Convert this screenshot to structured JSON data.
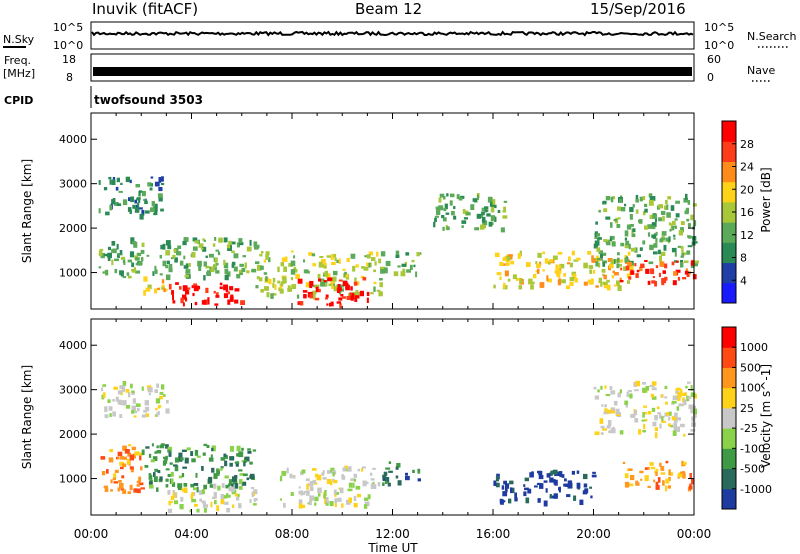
{
  "header": {
    "station": "Inuvik (fitACF)",
    "beam": "Beam 12",
    "date": "15/Sep/2016"
  },
  "top_strips": {
    "nsky": {
      "label": "N.Sky",
      "ticks": [
        "10^5",
        "10^0"
      ]
    },
    "nsearch": {
      "label": "N.Search",
      "ticks": [
        "10^5",
        "10^0"
      ]
    },
    "freq": {
      "label": "Freq.",
      "unit": "[MHz]",
      "ticks": [
        "18",
        "8"
      ]
    },
    "nave": {
      "label": "Nave",
      "ticks": [
        "60",
        "0"
      ]
    },
    "cpid": {
      "label": "CPID",
      "value": "twofsound 3503"
    }
  },
  "colors": {
    "power": [
      "#1a1aff",
      "#1f3fa6",
      "#2a8a55",
      "#5aaa5a",
      "#a8c83a",
      "#ffd21a",
      "#ff8c1a",
      "#ff3c1a",
      "#ff0000"
    ],
    "velocity": [
      "#1e3ca0",
      "#2a6a5a",
      "#3f9a46",
      "#8ad24a",
      "#c8c8c8",
      "#ffd21a",
      "#ff961e",
      "#ff4a14",
      "#ff0000"
    ],
    "groundscatter": "#c8c8c8"
  },
  "chart_data": [
    {
      "type": "heatmap",
      "name": "power",
      "ylabel": "Slant Range [km]",
      "xlabel": "Time UT",
      "colorbar_label": "Power [dB]",
      "colorbar_ticks": [
        "28",
        "24",
        "20",
        "16",
        "12",
        "8",
        "4"
      ],
      "x_ticks": [
        "00:00",
        "04:00",
        "08:00",
        "12:00",
        "16:00",
        "20:00",
        "00:00"
      ],
      "y_ticks": [
        "1000",
        "2000",
        "3000",
        "4000"
      ],
      "xlim_hours": [
        0,
        24
      ],
      "ylim_km": [
        180,
        4590
      ],
      "regions": [
        {
          "t": [
            0.3,
            2.8
          ],
          "r": [
            2300,
            3200
          ],
          "level": 3
        },
        {
          "t": [
            0.3,
            6.6
          ],
          "r": [
            900,
            1800
          ],
          "level": 4
        },
        {
          "t": [
            3.0,
            6.0
          ],
          "r": [
            300,
            800
          ],
          "level": 9
        },
        {
          "t": [
            2.0,
            3.0
          ],
          "r": [
            600,
            1000
          ],
          "level": 6
        },
        {
          "t": [
            6.5,
            11.5
          ],
          "r": [
            500,
            1500
          ],
          "level": 5
        },
        {
          "t": [
            8.2,
            11.0
          ],
          "r": [
            300,
            900
          ],
          "level": 9
        },
        {
          "t": [
            11.5,
            13.0
          ],
          "r": [
            1000,
            1500
          ],
          "level": 4
        },
        {
          "t": [
            13.5,
            16.5
          ],
          "r": [
            2000,
            2800
          ],
          "level": 4
        },
        {
          "t": [
            16.0,
            21.5
          ],
          "r": [
            700,
            1500
          ],
          "level": 6
        },
        {
          "t": [
            20.0,
            24.0
          ],
          "r": [
            1200,
            2800
          ],
          "level": 4
        },
        {
          "t": [
            21.0,
            24.0
          ],
          "r": [
            800,
            1300
          ],
          "level": 8
        }
      ]
    },
    {
      "type": "heatmap",
      "name": "velocity",
      "ylabel": "Slant Range [km]",
      "xlabel": "Time UT",
      "colorbar_label": "Velocity [m s^-1]",
      "colorbar_ticks": [
        "1000",
        "500",
        "100",
        "25",
        "-25",
        "-100",
        "-500",
        "-1000"
      ],
      "x_ticks": [
        "00:00",
        "04:00",
        "08:00",
        "12:00",
        "16:00",
        "20:00",
        "00:00"
      ],
      "y_ticks": [
        "1000",
        "2000",
        "3000",
        "4000"
      ],
      "xlim_hours": [
        0,
        24
      ],
      "ylim_km": [
        180,
        4590
      ],
      "regions": [
        {
          "t": [
            0.3,
            3.0
          ],
          "r": [
            2400,
            3200
          ],
          "level": 5
        },
        {
          "t": [
            0.3,
            2.0
          ],
          "r": [
            700,
            1800
          ],
          "level": 7
        },
        {
          "t": [
            2.0,
            6.5
          ],
          "r": [
            800,
            1800
          ],
          "level": 3
        },
        {
          "t": [
            3.0,
            6.5
          ],
          "r": [
            300,
            900
          ],
          "level": 5
        },
        {
          "t": [
            7.5,
            11.5
          ],
          "r": [
            400,
            1300
          ],
          "level": 5
        },
        {
          "t": [
            11.5,
            13.0
          ],
          "r": [
            900,
            1400
          ],
          "level": 2
        },
        {
          "t": [
            16.0,
            20.0
          ],
          "r": [
            500,
            1200
          ],
          "level": 1
        },
        {
          "t": [
            20.0,
            24.0
          ],
          "r": [
            2000,
            3200
          ],
          "level": 5
        },
        {
          "t": [
            21.0,
            24.0
          ],
          "r": [
            800,
            1400
          ],
          "level": 7
        }
      ]
    }
  ]
}
